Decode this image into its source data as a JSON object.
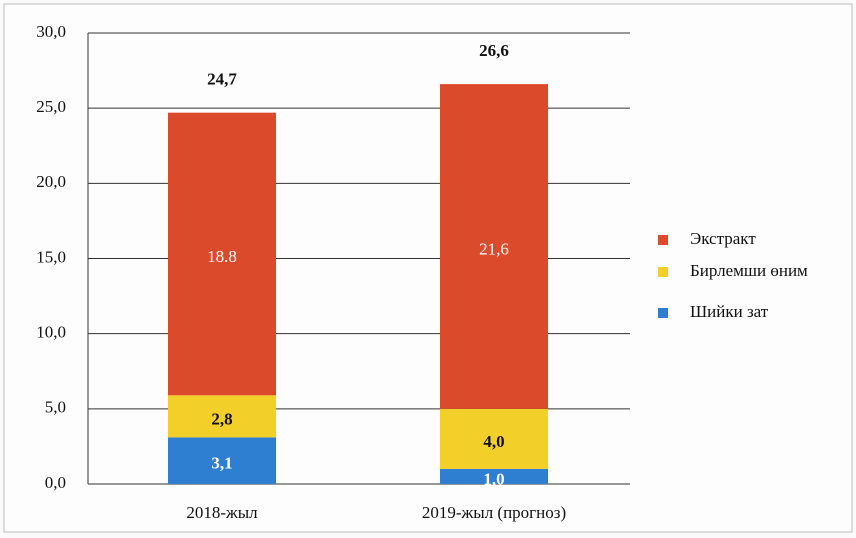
{
  "chart_data": {
    "type": "stacked_bar",
    "categories": [
      "2018-жыл",
      "2019-жыл (прогноз)"
    ],
    "series": [
      {
        "name": "Шийки зат",
        "color": "#2e7fd1",
        "label_color": "#ffffff",
        "values": [
          3.1,
          1.0
        ],
        "value_labels": [
          "3,1",
          "1,0"
        ]
      },
      {
        "name": "Бирлемши өним",
        "color": "#f3cf2a",
        "label_color": "#111111",
        "values": [
          2.8,
          4.0
        ],
        "value_labels": [
          "2,8",
          "4,0"
        ]
      },
      {
        "name": "Экстракт",
        "color": "#dc4a2c",
        "label_color": "#ffffff",
        "values": [
          18.8,
          21.6
        ],
        "value_labels": [
          "18.8",
          "21,6"
        ]
      }
    ],
    "totals": [
      24.7,
      26.6
    ],
    "total_labels": [
      "24,7",
      "26,6"
    ],
    "ylim": [
      0,
      30
    ],
    "yticks": [
      {
        "value": 0,
        "label": "0,0"
      },
      {
        "value": 5,
        "label": "5,0"
      },
      {
        "value": 10,
        "label": "10,0"
      },
      {
        "value": 15,
        "label": "15,0"
      },
      {
        "value": 20,
        "label": "20,0"
      },
      {
        "value": 25,
        "label": "25,0"
      },
      {
        "value": 30,
        "label": "30,0"
      }
    ],
    "grid": true,
    "legend": "right"
  }
}
